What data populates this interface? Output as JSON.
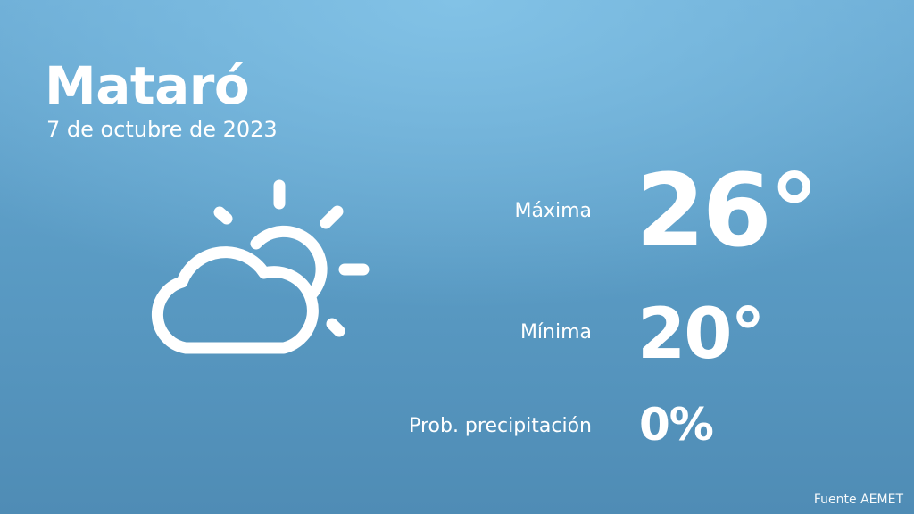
{
  "location": {
    "city": "Mataró",
    "date": "7 de octubre de 2023"
  },
  "forecast": {
    "icon": "partly-cloudy-icon",
    "max_label": "Máxima",
    "max_value": "26°",
    "min_label": "Mínima",
    "min_value": "20°",
    "precip_label": "Prob. precipitación",
    "precip_value": "0%"
  },
  "source": "Fuente AEMET",
  "colors": {
    "background_top": "#82c2e6",
    "background_bottom": "#4f8cb5",
    "text": "#ffffff"
  }
}
